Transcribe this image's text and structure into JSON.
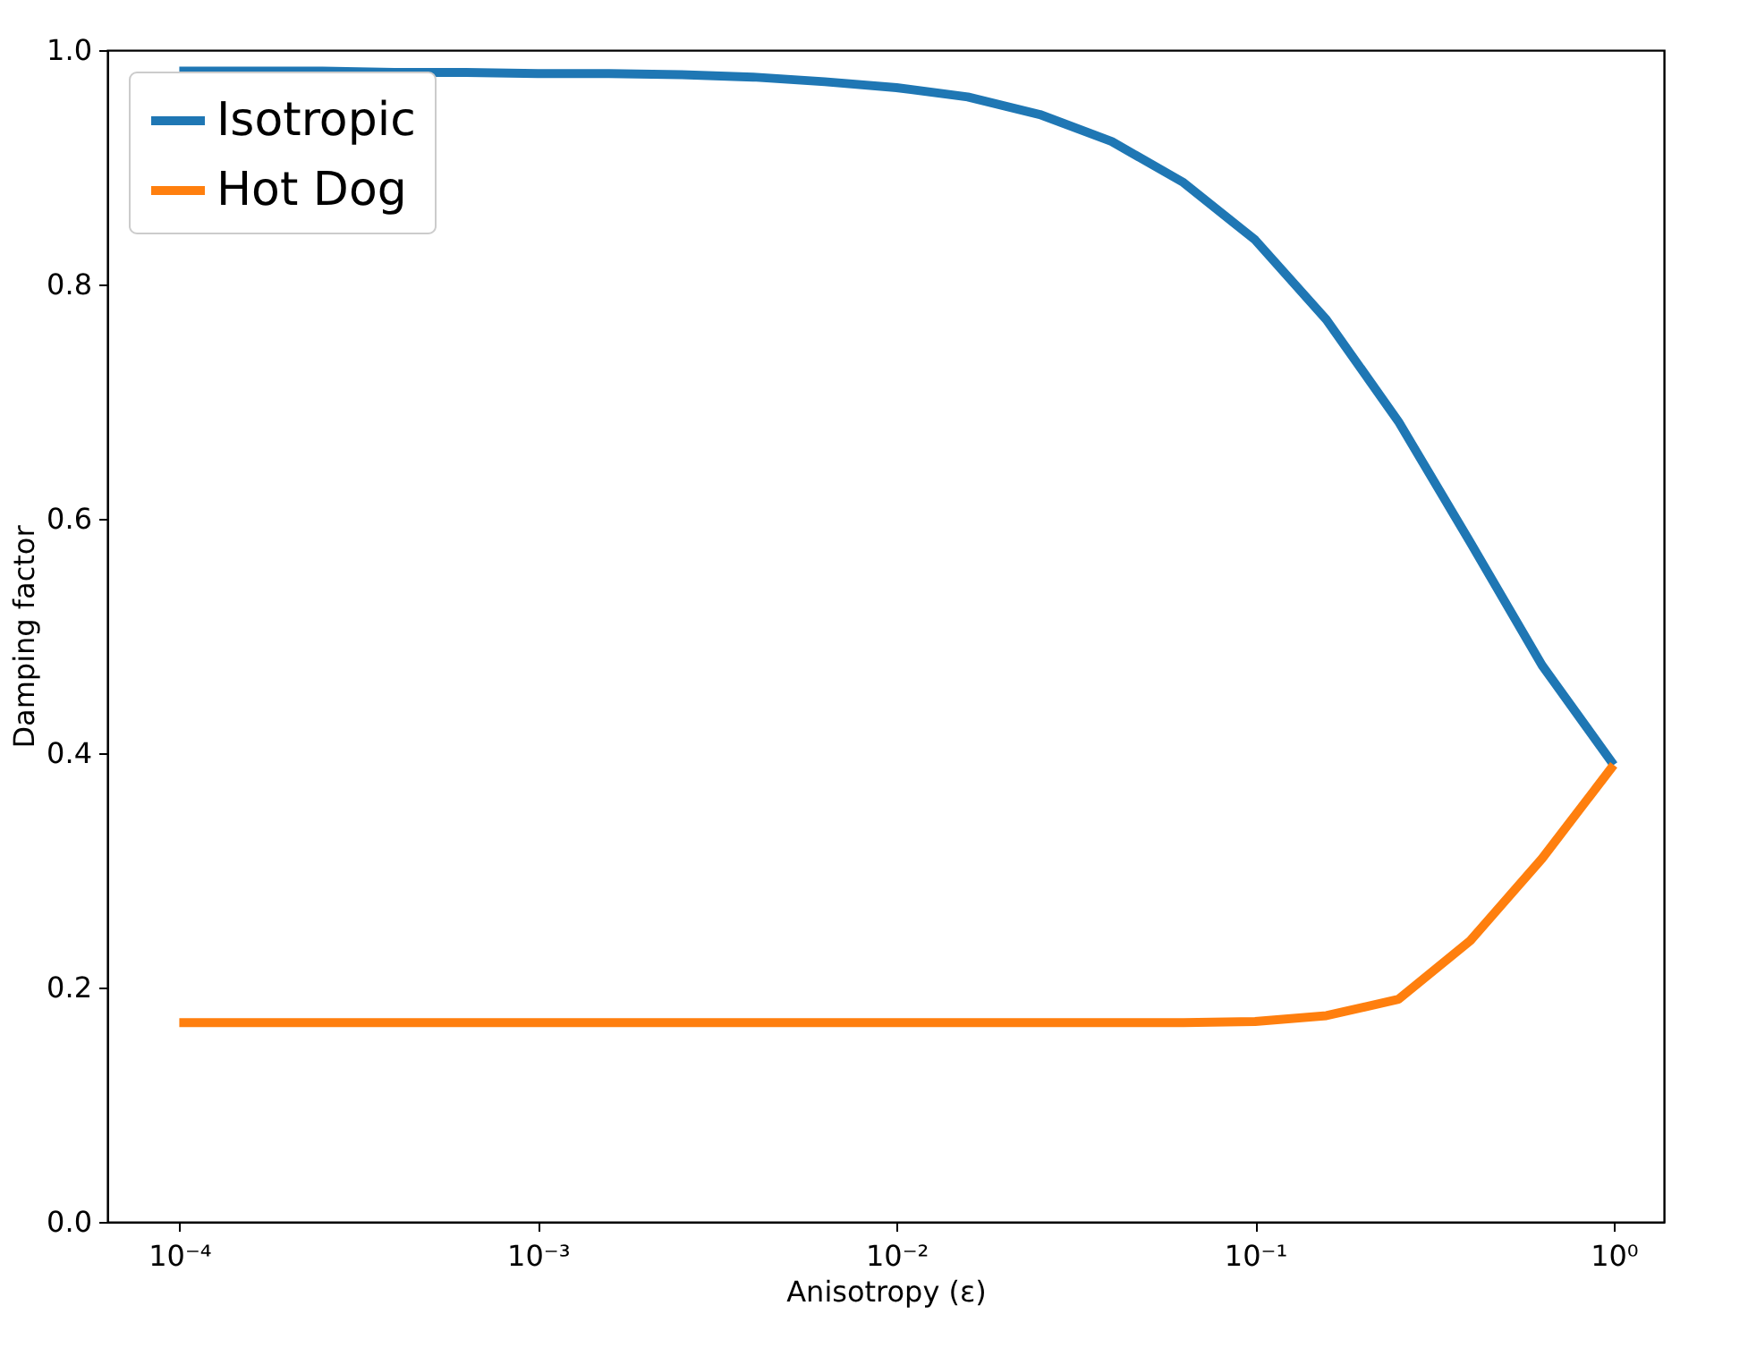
{
  "chart_data": {
    "type": "line",
    "xlabel": "Anisotropy (ε)",
    "ylabel": "Damping factor",
    "x": [
      0.0001,
      0.000158,
      0.000251,
      0.000398,
      0.000631,
      0.001,
      0.00158,
      0.00251,
      0.00398,
      0.00631,
      0.01,
      0.0158,
      0.0251,
      0.0398,
      0.0631,
      0.1,
      0.158,
      0.251,
      0.398,
      0.631,
      1.0
    ],
    "series": [
      {
        "name": "Isotropic",
        "color": "#1f77b4",
        "values": [
          0.982,
          0.982,
          0.982,
          0.981,
          0.981,
          0.98,
          0.98,
          0.979,
          0.977,
          0.973,
          0.968,
          0.96,
          0.945,
          0.922,
          0.887,
          0.838,
          0.77,
          0.683,
          0.58,
          0.475,
          0.39
        ]
      },
      {
        "name": "Hot Dog",
        "color": "#ff7f0e",
        "values": [
          0.17,
          0.17,
          0.17,
          0.17,
          0.17,
          0.17,
          0.17,
          0.17,
          0.17,
          0.17,
          0.17,
          0.17,
          0.17,
          0.17,
          0.17,
          0.171,
          0.176,
          0.19,
          0.24,
          0.31,
          0.39
        ]
      }
    ],
    "log": "x",
    "xlim": [
      6.3e-05,
      1.38
    ],
    "xticks": [
      {
        "value": 0.0001,
        "label": "10⁻⁴"
      },
      {
        "value": 0.001,
        "label": "10⁻³"
      },
      {
        "value": 0.01,
        "label": "10⁻²"
      },
      {
        "value": 0.1,
        "label": "10⁻¹"
      },
      {
        "value": 1,
        "label": "10⁰"
      }
    ],
    "ylim": [
      0,
      1
    ],
    "yticks": [
      {
        "value": 0,
        "label": "0.0"
      },
      {
        "value": 0.2,
        "label": "0.2"
      },
      {
        "value": 0.4,
        "label": "0.4"
      },
      {
        "value": 0.6,
        "label": "0.6"
      },
      {
        "value": 0.8,
        "label": "0.8"
      },
      {
        "value": 1,
        "label": "1.0"
      }
    ],
    "legend": "top left",
    "grid": false,
    "marker": "none",
    "line_style": "solid"
  }
}
